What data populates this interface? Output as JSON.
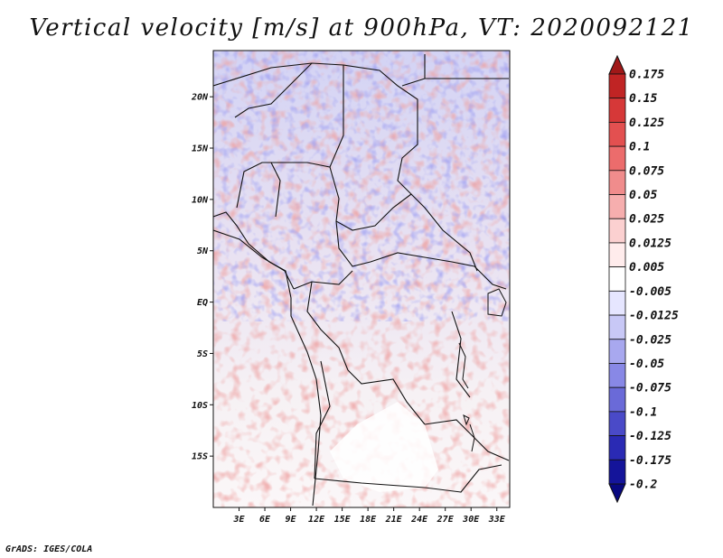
{
  "title": "Vertical velocity [m/s] at 900hPa, VT: 2020092121",
  "credit": "GrADS: IGES/COLA",
  "lat_ticks": [
    {
      "value": 20,
      "label": "20N"
    },
    {
      "value": 15,
      "label": "15N"
    },
    {
      "value": 10,
      "label": "10N"
    },
    {
      "value": 5,
      "label": "5N"
    },
    {
      "value": 0,
      "label": "EQ"
    },
    {
      "value": -5,
      "label": "5S"
    },
    {
      "value": -10,
      "label": "10S"
    },
    {
      "value": -15,
      "label": "15S"
    }
  ],
  "lon_ticks": [
    {
      "value": 3,
      "label": "3E"
    },
    {
      "value": 6,
      "label": "6E"
    },
    {
      "value": 9,
      "label": "9E"
    },
    {
      "value": 12,
      "label": "12E"
    },
    {
      "value": 15,
      "label": "15E"
    },
    {
      "value": 18,
      "label": "18E"
    },
    {
      "value": 21,
      "label": "21E"
    },
    {
      "value": 24,
      "label": "24E"
    },
    {
      "value": 27,
      "label": "27E"
    },
    {
      "value": 30,
      "label": "30E"
    },
    {
      "value": 33,
      "label": "33E"
    }
  ],
  "extent": {
    "lon_min": 0,
    "lon_max": 34.5,
    "lat_min": -20,
    "lat_max": 24.5
  },
  "colorbar": {
    "labels": [
      "0.175",
      "0.15",
      "0.125",
      "0.1",
      "0.075",
      "0.05",
      "0.025",
      "0.0125",
      "0.005",
      "-0.005",
      "-0.0125",
      "-0.025",
      "-0.05",
      "-0.075",
      "-0.1",
      "-0.125",
      "-0.175",
      "-0.2"
    ],
    "colors": [
      "#a01818",
      "#c02424",
      "#d63838",
      "#e35050",
      "#ec6c6c",
      "#f08c8c",
      "#f6aeae",
      "#fbd0d0",
      "#ffecec",
      "#ffffff",
      "#e6e6ff",
      "#c8c8f6",
      "#a8a8ef",
      "#8888e6",
      "#6a6ad8",
      "#4a4ac8",
      "#2a2ab4",
      "#14149a",
      "#080880"
    ]
  }
}
